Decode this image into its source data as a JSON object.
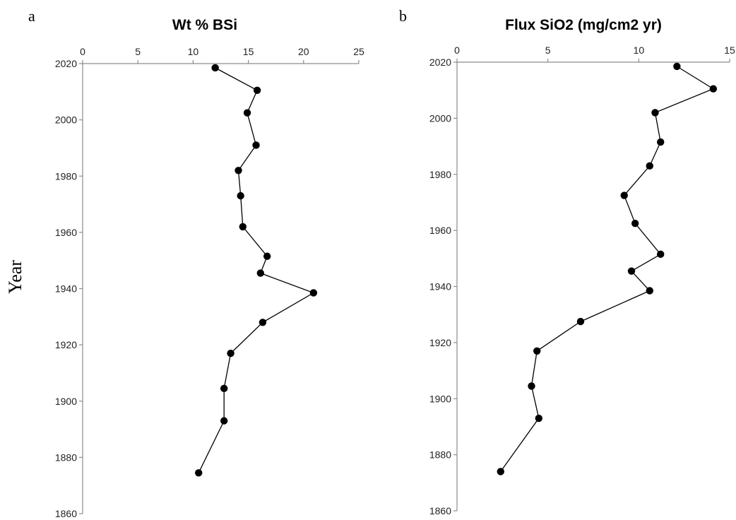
{
  "chart_data": [
    {
      "type": "line",
      "panel_label": "a",
      "title": "Wt % BSi",
      "ylabel": "Year",
      "xlabel": "",
      "xlim": [
        0,
        25
      ],
      "ylim": [
        1860,
        2020
      ],
      "x_ticks": [
        "0",
        "5",
        "10",
        "15",
        "20",
        "25"
      ],
      "y_ticks": [
        "2020",
        "2000",
        "1980",
        "1960",
        "1940",
        "1920",
        "1900",
        "1880",
        "1860"
      ],
      "x_axis_position": "top",
      "grid": false,
      "series": [
        {
          "points": [
            {
              "x": 12.0,
              "y": 2018.5
            },
            {
              "x": 15.8,
              "y": 2010.5
            },
            {
              "x": 14.9,
              "y": 2002.5
            },
            {
              "x": 15.7,
              "y": 1991.0
            },
            {
              "x": 14.1,
              "y": 1982.0
            },
            {
              "x": 14.3,
              "y": 1973.0
            },
            {
              "x": 14.5,
              "y": 1962.0
            },
            {
              "x": 16.7,
              "y": 1951.5
            },
            {
              "x": 16.1,
              "y": 1945.5
            },
            {
              "x": 20.9,
              "y": 1938.5
            },
            {
              "x": 16.3,
              "y": 1928.0
            },
            {
              "x": 13.4,
              "y": 1917.0
            },
            {
              "x": 12.8,
              "y": 1904.5
            },
            {
              "x": 12.8,
              "y": 1893.0
            },
            {
              "x": 10.5,
              "y": 1874.5
            }
          ]
        }
      ]
    },
    {
      "type": "line",
      "panel_label": "b",
      "title": "Flux SiO2 (mg/cm2 yr)",
      "ylabel": "",
      "xlabel": "",
      "xlim": [
        0,
        15
      ],
      "ylim": [
        1860,
        2020
      ],
      "x_ticks": [
        "0",
        "5",
        "10",
        "15"
      ],
      "y_ticks": [
        "2020",
        "2000",
        "1980",
        "1960",
        "1940",
        "1920",
        "1900",
        "1880",
        "1860"
      ],
      "x_axis_position": "top",
      "grid": false,
      "series": [
        {
          "points": [
            {
              "x": 12.1,
              "y": 2018.5
            },
            {
              "x": 14.1,
              "y": 2010.5
            },
            {
              "x": 10.9,
              "y": 2002.0
            },
            {
              "x": 11.2,
              "y": 1991.5
            },
            {
              "x": 10.6,
              "y": 1983.0
            },
            {
              "x": 9.2,
              "y": 1972.5
            },
            {
              "x": 9.8,
              "y": 1962.5
            },
            {
              "x": 11.2,
              "y": 1951.5
            },
            {
              "x": 9.6,
              "y": 1945.5
            },
            {
              "x": 10.6,
              "y": 1938.5
            },
            {
              "x": 6.8,
              "y": 1927.5
            },
            {
              "x": 4.4,
              "y": 1917.0
            },
            {
              "x": 4.1,
              "y": 1904.5
            },
            {
              "x": 4.5,
              "y": 1893.0
            },
            {
              "x": 2.4,
              "y": 1874.0
            }
          ]
        }
      ]
    }
  ]
}
